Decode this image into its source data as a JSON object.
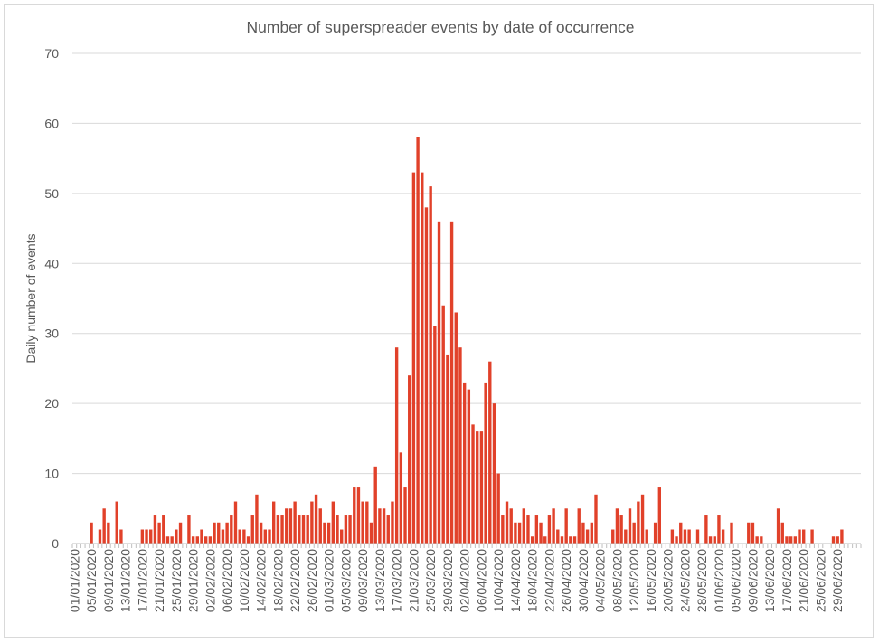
{
  "chart_data": {
    "type": "bar",
    "title": "Number of superspreader events by date of occurrence",
    "xlabel": "",
    "ylabel": "Daily number of events",
    "ylim": [
      0,
      70
    ],
    "yticks": [
      0,
      10,
      20,
      30,
      40,
      50,
      60,
      70
    ],
    "grid": "horizontal",
    "bar_color": "#e1412a",
    "start_date": "01/01/2020",
    "end_date": "29/06/2020",
    "x_tick_labels": [
      "01/01/2020",
      "05/01/2020",
      "09/01/2020",
      "13/01/2020",
      "17/01/2020",
      "21/01/2020",
      "25/01/2020",
      "29/01/2020",
      "02/02/2020",
      "06/02/2020",
      "10/02/2020",
      "14/02/2020",
      "18/02/2020",
      "22/02/2020",
      "26/02/2020",
      "01/03/2020",
      "05/03/2020",
      "09/03/2020",
      "13/03/2020",
      "17/03/2020",
      "21/03/2020",
      "25/03/2020",
      "29/03/2020",
      "02/04/2020",
      "06/04/2020",
      "10/04/2020",
      "14/04/2020",
      "18/04/2020",
      "22/04/2020",
      "26/04/2020",
      "30/04/2020",
      "04/05/2020",
      "08/05/2020",
      "12/05/2020",
      "16/05/2020",
      "20/05/2020",
      "24/05/2020",
      "28/05/2020",
      "01/06/2020",
      "05/06/2020",
      "09/06/2020",
      "13/06/2020",
      "17/06/2020",
      "21/06/2020",
      "25/06/2020",
      "29/06/2020"
    ],
    "values": [
      0,
      0,
      0,
      0,
      3,
      0,
      2,
      5,
      3,
      0,
      6,
      2,
      0,
      0,
      0,
      0,
      2,
      2,
      2,
      4,
      3,
      4,
      1,
      1,
      2,
      3,
      0,
      4,
      1,
      1,
      2,
      1,
      1,
      3,
      3,
      2,
      3,
      4,
      6,
      2,
      2,
      1,
      4,
      7,
      3,
      2,
      2,
      6,
      4,
      4,
      5,
      5,
      6,
      4,
      4,
      4,
      6,
      7,
      5,
      3,
      3,
      6,
      4,
      2,
      4,
      4,
      8,
      8,
      6,
      6,
      3,
      11,
      5,
      5,
      4,
      6,
      28,
      13,
      8,
      24,
      53,
      58,
      53,
      48,
      51,
      31,
      46,
      34,
      27,
      46,
      33,
      28,
      23,
      22,
      17,
      16,
      16,
      23,
      26,
      20,
      10,
      4,
      6,
      5,
      3,
      3,
      5,
      4,
      1,
      4,
      3,
      1,
      4,
      5,
      2,
      1,
      5,
      1,
      1,
      5,
      3,
      2,
      3,
      7,
      0,
      0,
      0,
      2,
      5,
      4,
      2,
      5,
      3,
      6,
      7,
      2,
      0,
      3,
      8,
      0,
      0,
      2,
      1,
      3,
      2,
      2,
      0,
      2,
      0,
      4,
      1,
      1,
      4,
      2,
      0,
      3,
      0,
      0,
      0,
      3,
      3,
      1,
      1,
      0,
      0,
      0,
      5,
      3,
      1,
      1,
      1,
      2,
      2,
      0,
      2,
      0,
      0,
      0,
      0,
      1,
      1,
      2,
      0,
      0,
      0,
      0
    ]
  }
}
